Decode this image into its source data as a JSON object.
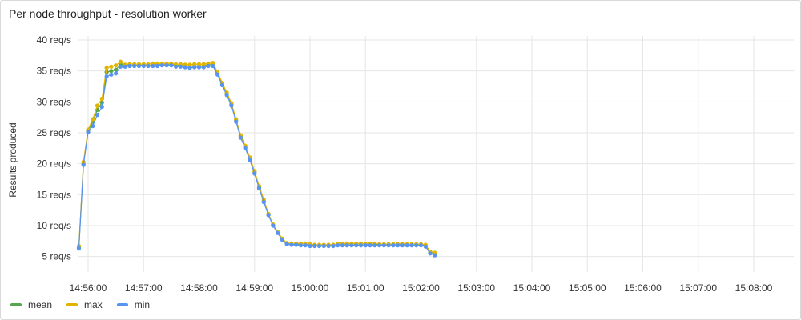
{
  "panel": {
    "title": "Per node throughput - resolution worker"
  },
  "chart_data": {
    "type": "line",
    "title": "Per node throughput - resolution worker",
    "ylabel": "Results produced",
    "xlabel": "",
    "ylim": [
      2.5,
      40
    ],
    "y_ticks": [
      5,
      10,
      15,
      20,
      25,
      30,
      35,
      40
    ],
    "y_tick_labels": [
      "5 req/s",
      "10 req/s",
      "15 req/s",
      "20 req/s",
      "25 req/s",
      "30 req/s",
      "35 req/s",
      "40 req/s"
    ],
    "x_tick_labels": [
      "14:56:00",
      "14:57:00",
      "14:58:00",
      "14:59:00",
      "15:00:00",
      "15:01:00",
      "15:02:00",
      "15:03:00",
      "15:04:00",
      "15:05:00",
      "15:06:00",
      "15:07:00",
      "15:08:00"
    ],
    "x_start": "14:55:50",
    "x_step_seconds": 5,
    "grid": true,
    "legend_position": "bottom-left",
    "series": [
      {
        "name": "mean",
        "color": "#56a64b",
        "values": [
          6.5,
          20.0,
          25.3,
          26.8,
          28.7,
          29.9,
          34.8,
          35.0,
          35.2,
          36.0,
          35.9,
          35.9,
          35.9,
          35.9,
          35.9,
          35.9,
          35.9,
          36.0,
          36.0,
          36.0,
          36.0,
          35.9,
          35.9,
          35.8,
          35.8,
          35.8,
          35.8,
          35.8,
          36.0,
          36.0,
          34.6,
          32.9,
          31.3,
          29.6,
          27.0,
          24.4,
          22.7,
          20.8,
          18.6,
          16.2,
          14.0,
          11.8,
          10.1,
          8.9,
          7.8,
          7.1,
          7.0,
          7.0,
          6.9,
          6.9,
          6.8,
          6.8,
          6.8,
          6.8,
          6.8,
          6.8,
          6.9,
          6.9,
          6.9,
          6.9,
          6.9,
          6.9,
          6.9,
          6.9,
          6.9,
          6.9,
          6.9,
          6.9,
          6.9,
          6.9,
          6.9,
          6.9,
          6.9,
          6.9,
          6.9,
          6.8,
          5.6,
          5.4
        ]
      },
      {
        "name": "max",
        "color": "#e0b400",
        "values": [
          6.7,
          20.3,
          25.5,
          27.2,
          29.4,
          30.5,
          35.5,
          35.7,
          35.9,
          36.5,
          36.0,
          36.1,
          36.1,
          36.1,
          36.1,
          36.1,
          36.2,
          36.2,
          36.2,
          36.2,
          36.2,
          36.1,
          36.1,
          36.0,
          36.0,
          36.1,
          36.1,
          36.1,
          36.2,
          36.3,
          34.8,
          33.1,
          31.5,
          29.8,
          27.2,
          24.6,
          22.9,
          21.0,
          18.8,
          16.4,
          14.2,
          11.9,
          10.2,
          9.0,
          7.9,
          7.2,
          7.1,
          7.1,
          7.1,
          7.1,
          7.0,
          6.9,
          6.9,
          6.9,
          6.9,
          6.9,
          7.1,
          7.1,
          7.1,
          7.1,
          7.1,
          7.1,
          7.1,
          7.1,
          7.1,
          7.0,
          7.0,
          7.0,
          7.0,
          7.0,
          7.0,
          7.0,
          7.0,
          7.0,
          7.0,
          6.9,
          5.8,
          5.6
        ]
      },
      {
        "name": "min",
        "color": "#5794f2",
        "values": [
          6.3,
          19.8,
          25.1,
          26.1,
          27.9,
          29.2,
          34.1,
          34.4,
          34.6,
          35.7,
          35.7,
          35.8,
          35.8,
          35.8,
          35.8,
          35.8,
          35.8,
          35.8,
          35.9,
          35.9,
          35.9,
          35.7,
          35.7,
          35.6,
          35.5,
          35.6,
          35.6,
          35.6,
          35.8,
          35.8,
          34.4,
          32.7,
          31.1,
          29.4,
          26.8,
          24.2,
          22.5,
          20.6,
          18.4,
          16.0,
          13.8,
          11.7,
          10.0,
          8.8,
          7.7,
          7.0,
          6.9,
          6.9,
          6.8,
          6.8,
          6.7,
          6.7,
          6.7,
          6.7,
          6.7,
          6.7,
          6.8,
          6.8,
          6.8,
          6.8,
          6.8,
          6.8,
          6.8,
          6.8,
          6.8,
          6.8,
          6.8,
          6.8,
          6.8,
          6.8,
          6.8,
          6.8,
          6.8,
          6.8,
          6.8,
          6.6,
          5.5,
          5.2
        ]
      }
    ]
  }
}
